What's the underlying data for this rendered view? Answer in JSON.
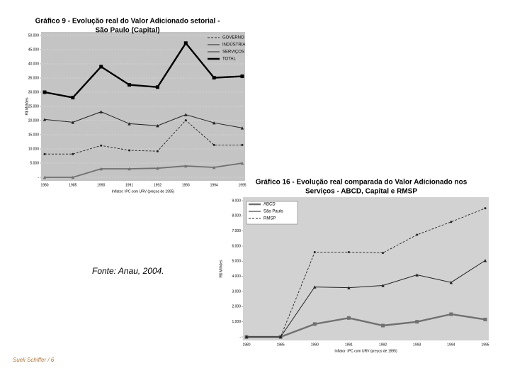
{
  "chart_data": [
    {
      "type": "line",
      "title": [
        "Gráfico 9 - Evolução real do Valor Adicionado setorial -",
        "São Paulo (Capital)"
      ],
      "subtitle": "Inflator: IPC com URV (preços de 1995)",
      "y_label": "R$ Milhões",
      "categories": [
        "1980",
        "1985",
        "1990",
        "1991",
        "1992",
        "1993",
        "1994",
        "1995"
      ],
      "ylim": [
        0,
        50000
      ],
      "yticks": [
        {
          "value": 0,
          "label": "-"
        },
        {
          "value": 5000,
          "label": "5.000"
        },
        {
          "value": 10000,
          "label": "10.000"
        },
        {
          "value": 15000,
          "label": "15.000"
        },
        {
          "value": 20000,
          "label": "20.000"
        },
        {
          "value": 25000,
          "label": "25.000"
        },
        {
          "value": 30000,
          "label": "30.000"
        },
        {
          "value": 35000,
          "label": "35.000"
        },
        {
          "value": 40000,
          "label": "40.000"
        },
        {
          "value": 45000,
          "label": "45.000"
        },
        {
          "value": 50000,
          "label": "50.000"
        }
      ],
      "grid": true,
      "background": "#c4c4c4",
      "series": [
        {
          "name": "GOVERNO",
          "color": "#222222",
          "style": "dashed",
          "values": [
            8200,
            8200,
            11200,
            9500,
            9200,
            20100,
            11400,
            11400
          ]
        },
        {
          "name": "INDÚSTRIA",
          "color": "#222222",
          "style": "solid",
          "values": [
            20400,
            19400,
            23100,
            18900,
            18200,
            22100,
            19200,
            17400
          ]
        },
        {
          "name": "SERVIÇOS",
          "color": "#707070",
          "style": "thick",
          "values": [
            0,
            0,
            3000,
            3000,
            3200,
            4000,
            3500,
            5000
          ]
        },
        {
          "name": "TOTAL",
          "color": "#000000",
          "style": "bold",
          "values": [
            30000,
            28100,
            39000,
            32600,
            31800,
            47300,
            35100,
            35600
          ]
        }
      ]
    },
    {
      "type": "line",
      "title": [
        "Gráfico 16 - Evolução real comparada do Valor Adicionado nos",
        "Serviços - ABCD, Capital e RMSP"
      ],
      "subtitle": "Inflator: IPC com URV (preços de 1995)",
      "y_label": "R$ Milhões",
      "categories": [
        "1980",
        "1985",
        "1990",
        "1991",
        "1992",
        "1993",
        "1994",
        "1995"
      ],
      "ylim": [
        0,
        9000
      ],
      "yticks": [
        {
          "value": 0,
          "label": "-"
        },
        {
          "value": 1000,
          "label": "1.000"
        },
        {
          "value": 2000,
          "label": "2.000"
        },
        {
          "value": 3000,
          "label": "3.000"
        },
        {
          "value": 4000,
          "label": "4.000"
        },
        {
          "value": 5000,
          "label": "5.000"
        },
        {
          "value": 6000,
          "label": "6.000"
        },
        {
          "value": 7000,
          "label": "7.000"
        },
        {
          "value": 8000,
          "label": "8.000"
        },
        {
          "value": 9000,
          "label": "9.000"
        }
      ],
      "grid": false,
      "background": "#d2d2d2",
      "series": [
        {
          "name": "ABCD",
          "color": "#707070",
          "style": "bold",
          "values": [
            0,
            0,
            850,
            1250,
            750,
            1000,
            1500,
            1150
          ]
        },
        {
          "name": "São Paulo",
          "color": "#222222",
          "style": "solid",
          "values": [
            0,
            0,
            3300,
            3250,
            3400,
            4100,
            3600,
            5050
          ]
        },
        {
          "name": "RMSP",
          "color": "#222222",
          "style": "dashed",
          "values": [
            0,
            0,
            5600,
            5600,
            5550,
            6750,
            7600,
            8500
          ]
        }
      ]
    }
  ],
  "source": "Fonte: Anau, 2004.",
  "footer": "Sueli Schiffer / 6"
}
